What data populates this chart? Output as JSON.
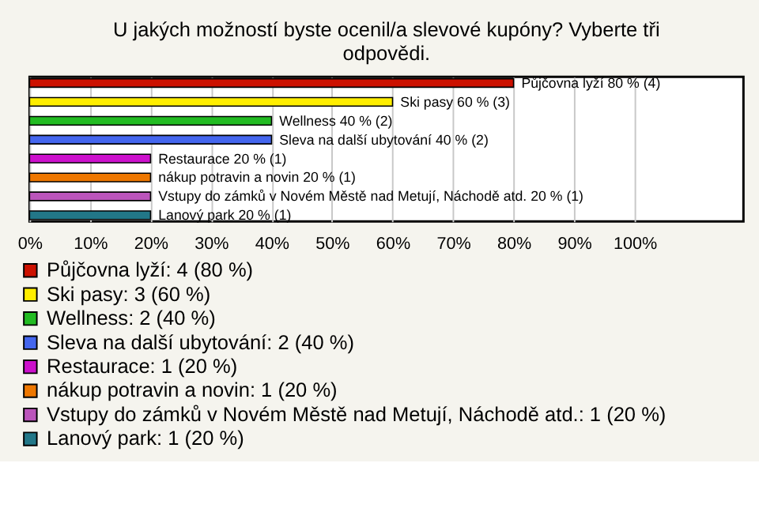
{
  "chart_data": {
    "type": "bar",
    "orientation": "horizontal",
    "title": "U jakých možností byste ocenil/a slevové kupóny? Vyberte tři odpovědi.",
    "categories": [
      null,
      null,
      null,
      null,
      null,
      null,
      null,
      null
    ],
    "series": [
      {
        "name": "Půjčovna lyží: 4 (80 %)",
        "color": "#cc1100",
        "values": [
          80,
          null,
          null,
          null,
          null,
          null,
          null,
          null
        ],
        "value_labels": [
          "Půjčovna lyží 80 % (4)",
          null,
          null,
          null,
          null,
          null,
          null,
          null
        ]
      },
      {
        "name": "Ski pasy: 3 (60 %)",
        "color": "#ffee00",
        "values": [
          null,
          60,
          null,
          null,
          null,
          null,
          null,
          null
        ],
        "value_labels": [
          null,
          "Ski pasy 60 % (3)",
          null,
          null,
          null,
          null,
          null,
          null
        ]
      },
      {
        "name": "Wellness: 2 (40 %)",
        "color": "#22bb22",
        "values": [
          null,
          null,
          40,
          null,
          null,
          null,
          null,
          null
        ],
        "value_labels": [
          null,
          null,
          "Wellness 40 % (2)",
          null,
          null,
          null,
          null,
          null
        ]
      },
      {
        "name": "Sleva na další ubytování: 2 (40 %)",
        "color": "#4466ee",
        "values": [
          null,
          null,
          null,
          40,
          null,
          null,
          null,
          null
        ],
        "value_labels": [
          null,
          null,
          null,
          "Sleva na další ubytování 40 % (2)",
          null,
          null,
          null,
          null
        ]
      },
      {
        "name": "Restaurace: 1 (20 %)",
        "color": "#cc11cc",
        "values": [
          null,
          null,
          null,
          null,
          20,
          null,
          null,
          null
        ],
        "value_labels": [
          null,
          null,
          null,
          null,
          "Restaurace 20 % (1)",
          null,
          null,
          null
        ]
      },
      {
        "name": "nákup potravin a novin: 1 (20 %)",
        "color": "#ee7700",
        "values": [
          null,
          null,
          null,
          null,
          null,
          20,
          null,
          null
        ],
        "value_labels": [
          null,
          null,
          null,
          null,
          null,
          "nákup potravin a novin 20 % (1)",
          null,
          null
        ]
      },
      {
        "name": "Vstupy do zámků v Novém Městě nad Metují, Náchodě atd.: 1 (20 %)",
        "color": "#bb55bb",
        "values": [
          null,
          null,
          null,
          null,
          null,
          null,
          20,
          null
        ],
        "value_labels": [
          null,
          null,
          null,
          null,
          null,
          null,
          "Vstupy do zámků v Novém Městě nad Metují, Náchodě atd. 20 % (1)",
          null
        ]
      },
      {
        "name": "Lanový park: 1 (20 %)",
        "color": "#227788",
        "values": [
          null,
          null,
          null,
          null,
          null,
          null,
          null,
          20
        ],
        "value_labels": [
          null,
          null,
          null,
          null,
          null,
          null,
          null,
          "Lanový park 20 % (1)"
        ]
      }
    ],
    "xlim": [
      0,
      118
    ],
    "xticks": [
      {
        "value": 0,
        "label": "0%"
      },
      {
        "value": 10,
        "label": "10%"
      },
      {
        "value": 20,
        "label": "20%"
      },
      {
        "value": 30,
        "label": "30%"
      },
      {
        "value": 40,
        "label": "40%"
      },
      {
        "value": 50,
        "label": "50%"
      },
      {
        "value": 60,
        "label": "60%"
      },
      {
        "value": 70,
        "label": "70%"
      },
      {
        "value": 80,
        "label": "80%"
      },
      {
        "value": 90,
        "label": "90%"
      },
      {
        "value": 100,
        "label": "100%"
      }
    ],
    "grid": "x",
    "legend": "bottom"
  }
}
